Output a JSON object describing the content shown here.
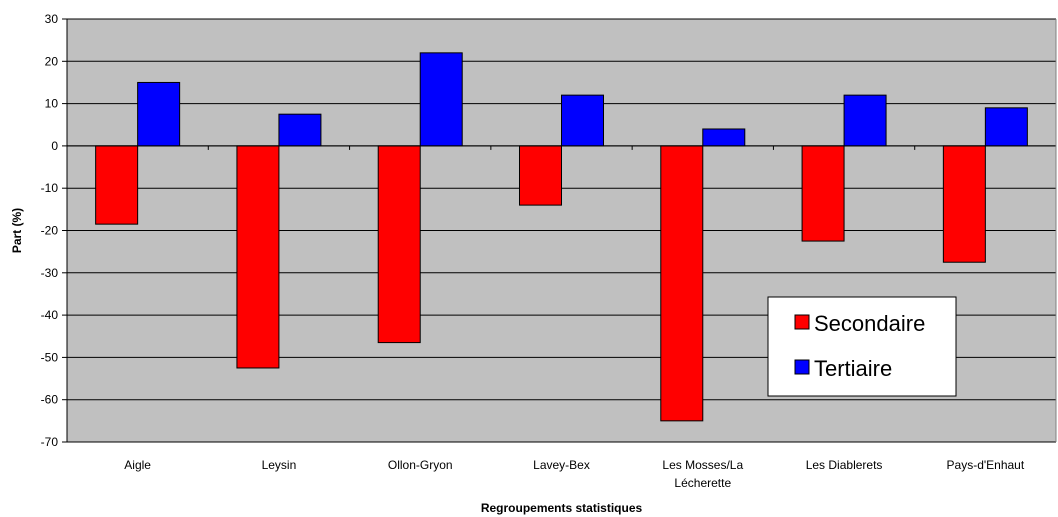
{
  "chart_data": {
    "type": "bar",
    "title": "",
    "xlabel": "Regroupements statistiques",
    "ylabel": "Part (%)",
    "ylim": [
      -70,
      30
    ],
    "yticks": [
      30,
      20,
      10,
      0,
      -10,
      -20,
      -30,
      -40,
      -50,
      -60,
      -70
    ],
    "grid": true,
    "legend_position": "bottom-right",
    "categories": [
      [
        "Aigle"
      ],
      [
        "Leysin"
      ],
      [
        "Ollon-Gryon"
      ],
      [
        "Lavey-Bex"
      ],
      [
        "Les Mosses/La",
        "Lécherette"
      ],
      [
        "Les Diablerets"
      ],
      [
        "Pays-d'Enhaut"
      ]
    ],
    "series": [
      {
        "name": "Secondaire",
        "color": "#ff0000",
        "values": [
          -18.5,
          -52.5,
          -46.5,
          -14,
          -65,
          -22.5,
          -27.5
        ]
      },
      {
        "name": "Tertiaire",
        "color": "#0000ff",
        "values": [
          15,
          7.5,
          22,
          12,
          4,
          12,
          9
        ]
      }
    ],
    "plot_background": "#c0c0c0"
  }
}
